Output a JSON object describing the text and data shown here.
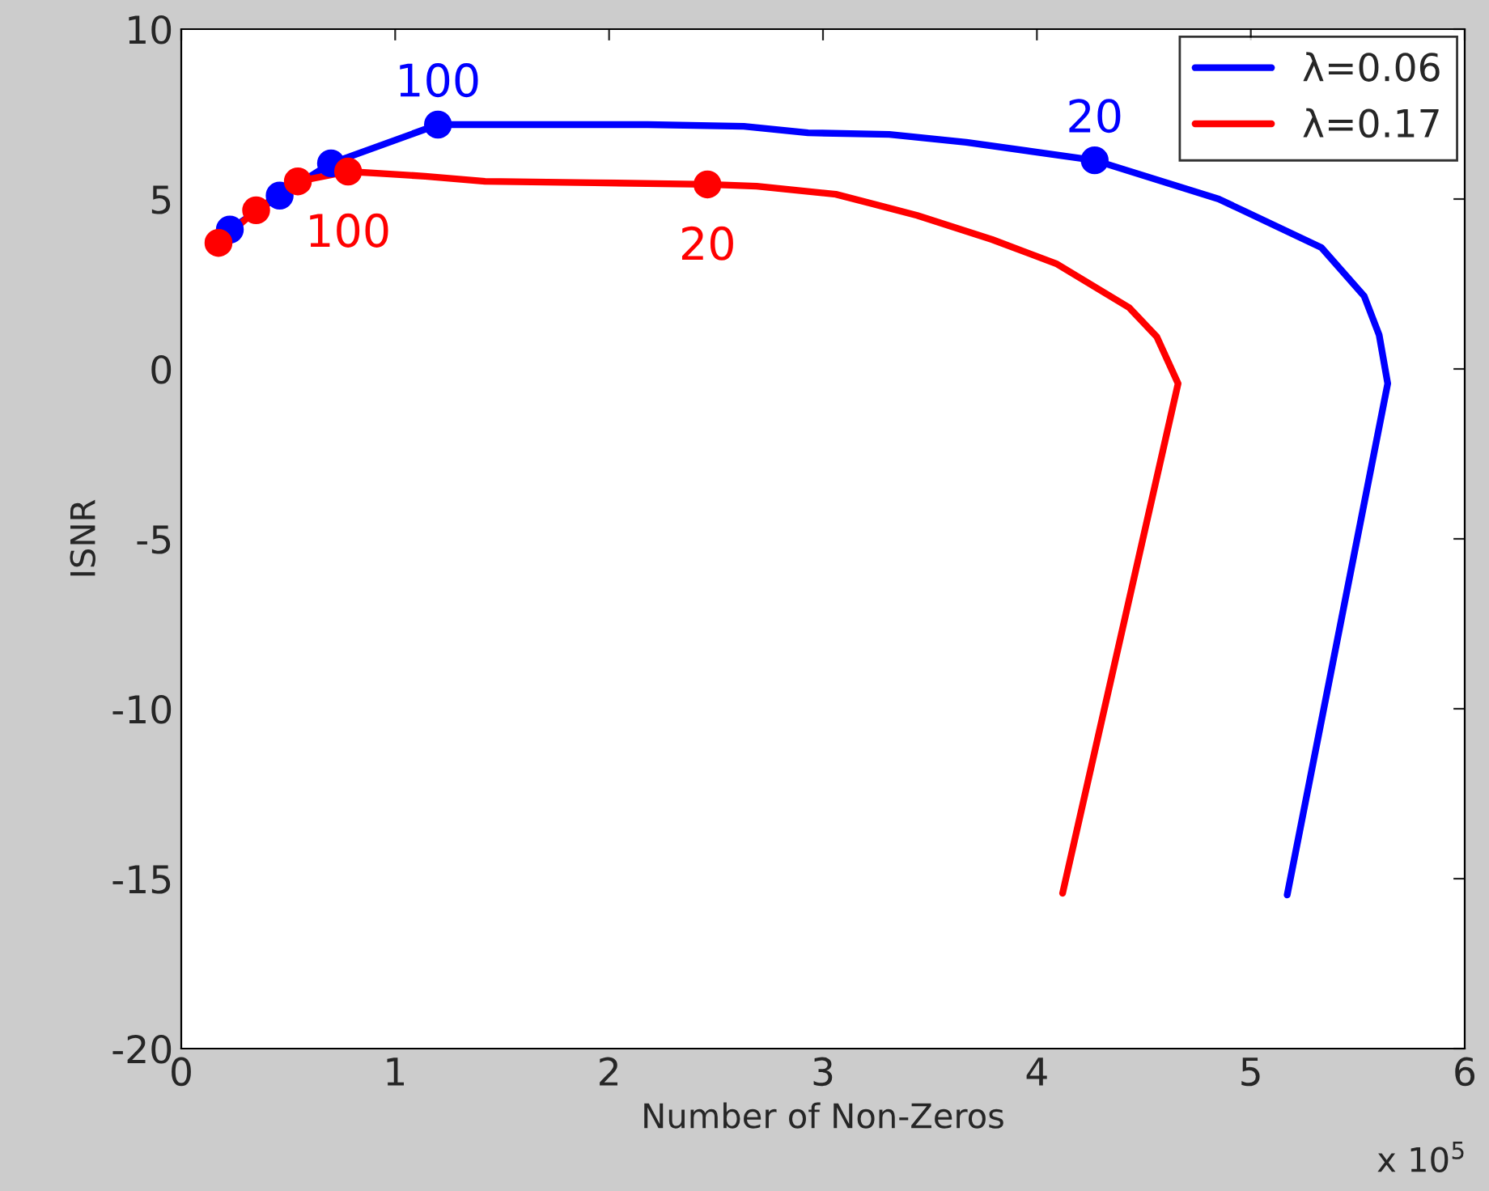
{
  "chart_data": {
    "type": "line",
    "xlabel": "Number of Non-Zeros",
    "ylabel": "ISNR",
    "xlim": [
      0,
      6
    ],
    "xticks": [
      0,
      1,
      2,
      3,
      4,
      5,
      6
    ],
    "ylim": [
      -20,
      10
    ],
    "yticks": [
      -20,
      -15,
      -10,
      -5,
      0,
      5,
      10
    ],
    "grid": false,
    "legend": "top right",
    "series": [
      {
        "name": "λ=0.06",
        "color": "#0000ff",
        "marker": "none",
        "x": [
          0.227,
          0.46,
          0.7,
          1.2,
          2.18,
          2.63,
          2.93,
          3.31,
          3.67,
          4.27,
          4.85,
          5.33,
          5.53,
          5.6,
          5.64,
          5.17
        ],
        "values": [
          4.1,
          5.1,
          6.05,
          7.19,
          7.19,
          7.14,
          6.95,
          6.9,
          6.67,
          6.14,
          5.0,
          3.57,
          2.14,
          1.0,
          -0.43,
          -15.48
        ]
      },
      {
        "name": "λ=0.17",
        "color": "#ff0000",
        "marker": "none",
        "x": [
          0.174,
          0.35,
          0.545,
          0.78,
          0.915,
          1.14,
          1.42,
          1.93,
          2.46,
          2.69,
          3.06,
          3.44,
          3.79,
          4.09,
          4.43,
          4.56,
          4.66,
          4.12
        ],
        "values": [
          3.71,
          4.67,
          5.52,
          5.81,
          5.76,
          5.67,
          5.52,
          5.48,
          5.43,
          5.38,
          5.14,
          4.52,
          3.81,
          3.1,
          1.81,
          0.95,
          -0.43,
          -15.43
        ]
      },
      {
        "type": "scatter",
        "color": "#0000ff",
        "marker": "circle",
        "x": [
          0.227,
          0.46,
          0.7,
          1.2,
          4.27
        ],
        "values": [
          4.1,
          5.1,
          6.05,
          7.19,
          6.14
        ]
      },
      {
        "type": "scatter",
        "color": "#ff0000",
        "marker": "circle",
        "x": [
          0.174,
          0.35,
          0.545,
          0.78,
          2.46
        ],
        "values": [
          3.71,
          4.67,
          5.52,
          5.81,
          5.43
        ]
      }
    ],
    "annotations": [
      {
        "text": "100",
        "x": 1.2,
        "y": 7.19
      },
      {
        "text": "20",
        "x": 4.27,
        "y": 6.14
      },
      {
        "text": "100",
        "x": 0.78,
        "y": 5.81
      },
      {
        "text": "20",
        "x": 2.46,
        "y": 5.43
      },
      "x 10$^{5}$"
    ]
  }
}
